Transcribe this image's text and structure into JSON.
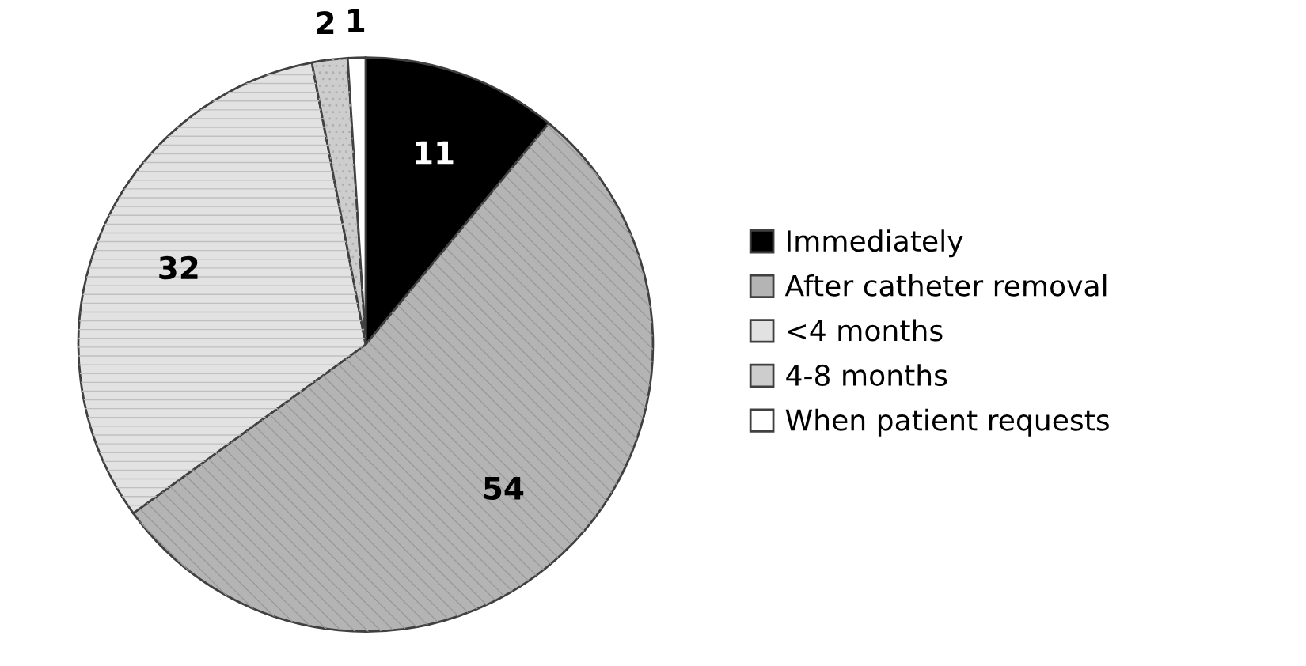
{
  "chart_data": {
    "type": "pie",
    "categories": [
      "Immediately",
      "After catheter removal",
      "<4 months",
      "4-8 months",
      "When patient requests"
    ],
    "values": [
      11,
      54,
      32,
      2,
      1
    ],
    "colors": [
      "#000000",
      "#b4b4b4",
      "#e2e2e2",
      "#cdcdcd",
      "#ffffff"
    ],
    "data_labels": true,
    "legend": "right"
  }
}
